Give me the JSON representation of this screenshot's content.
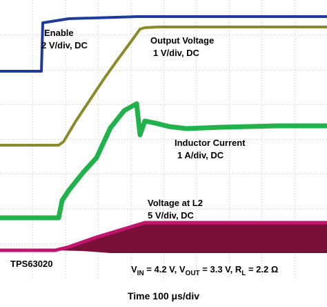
{
  "chart_data": {
    "type": "line",
    "title": "",
    "xlabel": "Time 100 μs/div",
    "ylabel": "",
    "grid": true,
    "x_divisions": 10,
    "y_divisions": 8,
    "x_unit": "μs",
    "annotations": {
      "part_number": "TPS63020",
      "conditions_prefix": "V",
      "conditions_vin_sub": "IN",
      "conditions_vin_val": " = 4.2 V, V",
      "conditions_vout_sub": "OUT",
      "conditions_tail": " = 3.3 V, R",
      "conditions_rl_sub": "L",
      "conditions_rl_val": " = 2.2 Ω"
    },
    "series": [
      {
        "name": "Enable",
        "scale": "2 V/div, DC",
        "color": "#1f3a9e",
        "x": [
          0,
          60,
          62,
          100,
          200,
          300,
          474
        ],
        "y": [
          103,
          103,
          33,
          27,
          24,
          24,
          24
        ]
      },
      {
        "name": "Output Voltage",
        "scale": "1 V/div, DC",
        "color": "#8a8a2a",
        "x": [
          0,
          85,
          92,
          110,
          130,
          150,
          170,
          190,
          203,
          210,
          230,
          260,
          300,
          474
        ],
        "y": [
          210,
          210,
          205,
          175,
          145,
          115,
          87,
          60,
          42,
          40,
          39,
          39,
          39,
          39
        ]
      },
      {
        "name": "Inductor Current",
        "scale": "1 A/div, DC",
        "color": "#22b24c",
        "x": [
          0,
          85,
          90,
          100,
          120,
          140,
          160,
          180,
          198,
          203,
          210,
          225,
          245,
          270,
          320,
          400,
          474
        ],
        "y": [
          315,
          315,
          290,
          275,
          250,
          228,
          185,
          160,
          150,
          195,
          175,
          178,
          183,
          186,
          184,
          182,
          182
        ]
      },
      {
        "name": "Voltage at L2",
        "scale": "5 V/div, DC",
        "color": "#c2166e",
        "x": [
          0,
          80,
          100,
          120,
          140,
          160,
          190,
          210,
          474
        ],
        "y": [
          362,
          362,
          357,
          350,
          343,
          337,
          328,
          322,
          322
        ]
      }
    ]
  }
}
